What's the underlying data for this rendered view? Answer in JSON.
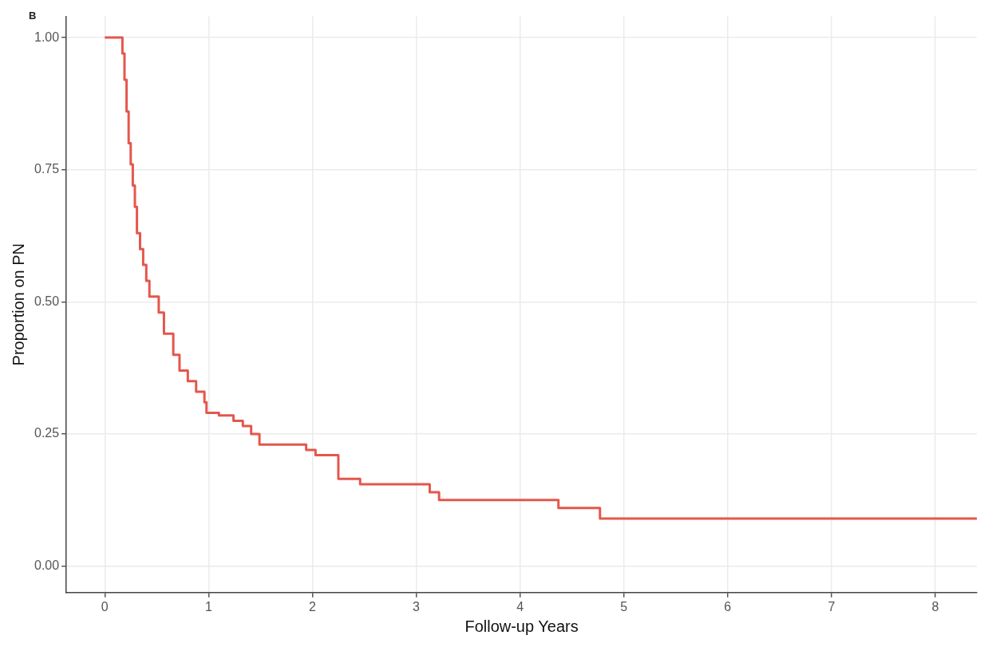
{
  "chart_data": {
    "type": "step",
    "xlabel": "Follow-up Years",
    "ylabel": "Proportion on PN",
    "annotations": [
      "B"
    ],
    "x": [
      0,
      0.17,
      0.19,
      0.21,
      0.23,
      0.25,
      0.27,
      0.29,
      0.31,
      0.34,
      0.37,
      0.4,
      0.43,
      0.46,
      0.52,
      0.57,
      0.66,
      0.72,
      0.8,
      0.88,
      0.96,
      0.98,
      1.1,
      1.24,
      1.33,
      1.41,
      1.49,
      1.94,
      2.03,
      2.25,
      2.46,
      3.13,
      3.22,
      4.37,
      4.77,
      8.4
    ],
    "series": [
      {
        "color": "#e4574c",
        "values": [
          1.0,
          0.97,
          0.92,
          0.86,
          0.8,
          0.76,
          0.72,
          0.68,
          0.63,
          0.6,
          0.57,
          0.54,
          0.51,
          0.51,
          0.48,
          0.44,
          0.4,
          0.37,
          0.35,
          0.33,
          0.31,
          0.29,
          0.285,
          0.275,
          0.265,
          0.25,
          0.23,
          0.22,
          0.21,
          0.165,
          0.155,
          0.14,
          0.125,
          0.11,
          0.09,
          0.09
        ]
      }
    ],
    "xlim": [
      -0.37,
      8.4
    ],
    "ylim": [
      -0.05,
      1.04
    ],
    "xticks": [
      0,
      1,
      2,
      3,
      4,
      5,
      6,
      7,
      8
    ],
    "yticks": [
      {
        "value": 0,
        "label": "0.00"
      },
      {
        "value": 0.25,
        "label": "0.25"
      },
      {
        "value": 0.5,
        "label": "0.50"
      },
      {
        "value": 0.75,
        "label": "0.75"
      },
      {
        "value": 1,
        "label": "1.00"
      }
    ],
    "grid": true,
    "legend": false,
    "line_style": "solid",
    "marker": "none"
  }
}
